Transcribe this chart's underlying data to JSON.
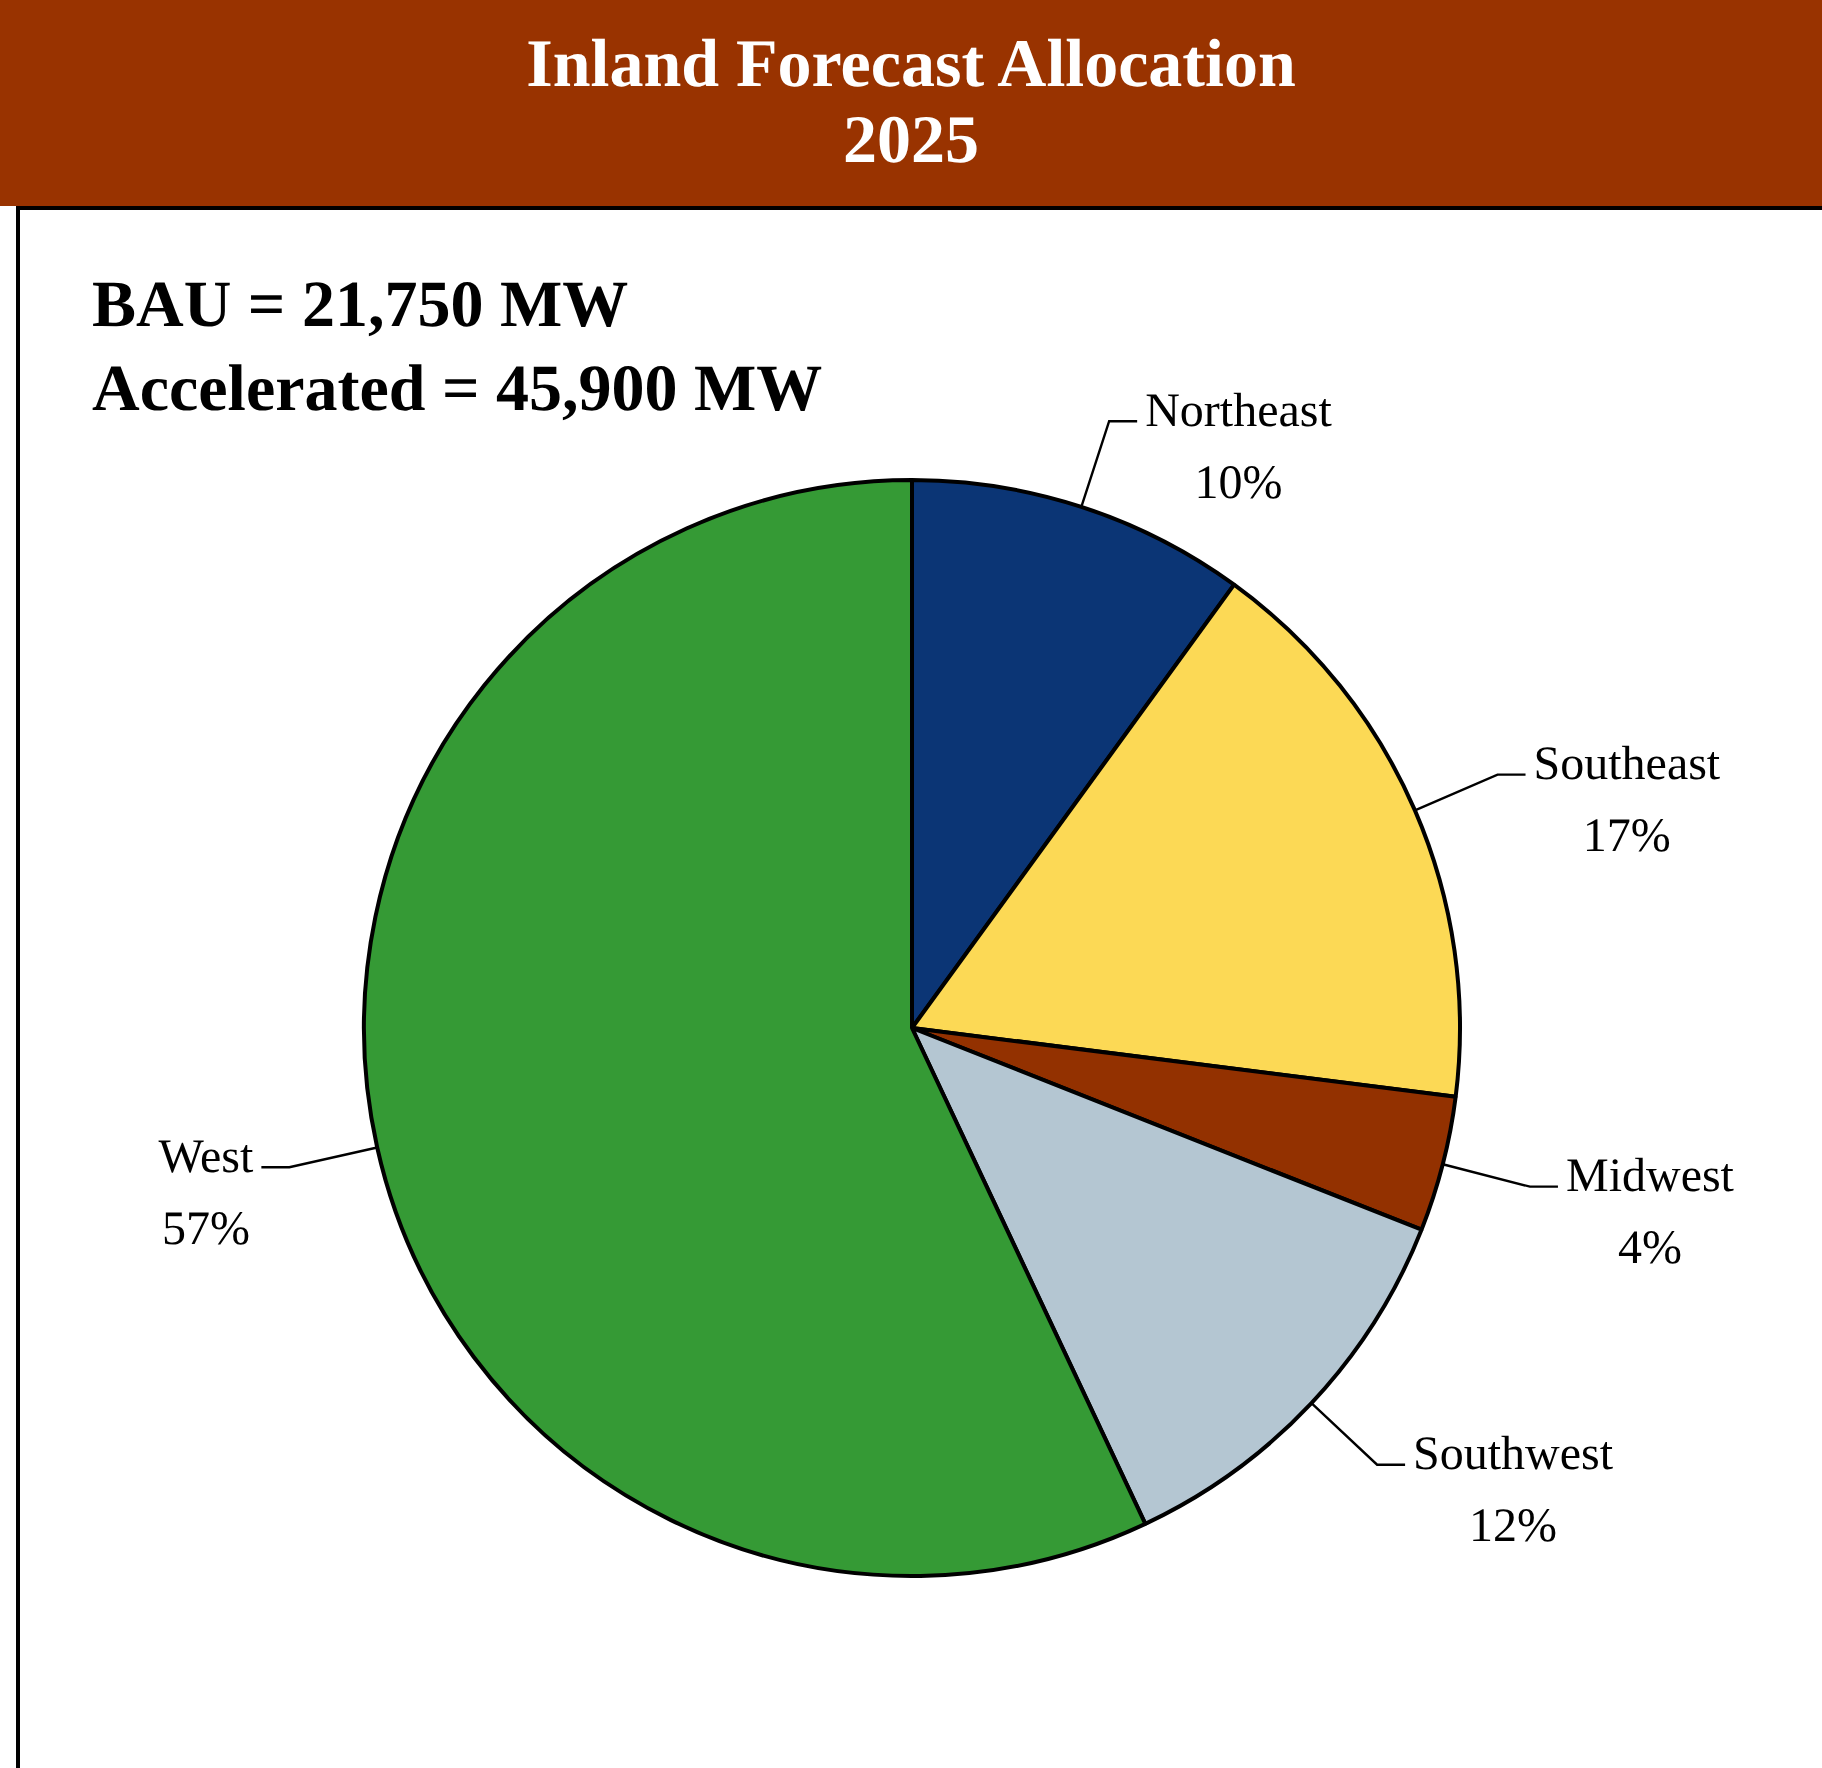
{
  "chart_data": {
    "type": "pie",
    "title": "Inland Forecast Allocation\n2025",
    "categories": [
      "Northeast",
      "Southeast",
      "Midwest",
      "Southwest",
      "West"
    ],
    "values": [
      10,
      17,
      4,
      12,
      57
    ],
    "value_labels": [
      "10%",
      "17%",
      "4%",
      "12%",
      "57%"
    ],
    "colors": [
      "#0b3575",
      "#fcd955",
      "#933100",
      "#b4c6d2",
      "#359a35"
    ],
    "annotations": [
      "BAU = 21,750 MW",
      "Accelerated = 45,900 MW"
    ]
  }
}
